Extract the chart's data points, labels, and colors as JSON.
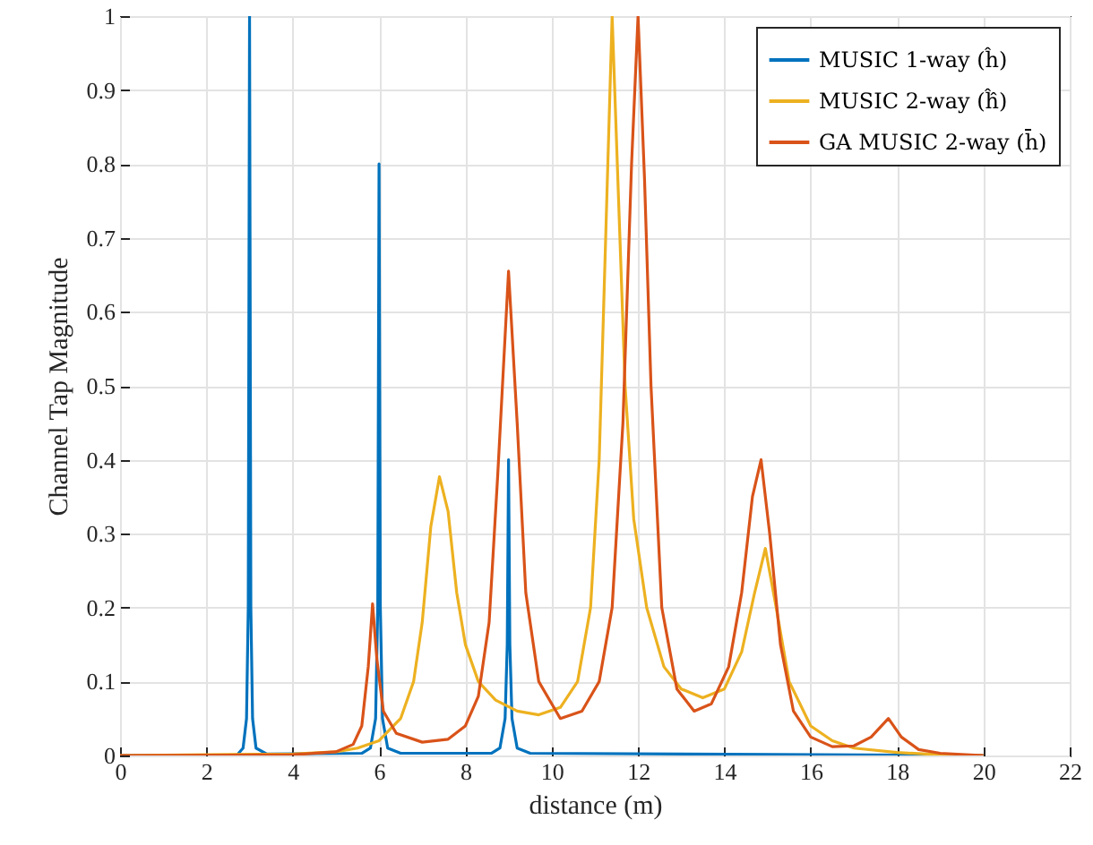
{
  "chart_data": {
    "type": "line",
    "xlabel": "distance (m)",
    "ylabel": "Channel Tap Magnitude",
    "xlim": [
      0,
      22
    ],
    "xticks": [
      0,
      2,
      4,
      6,
      8,
      10,
      12,
      14,
      16,
      18,
      20,
      22
    ],
    "ylim": [
      0,
      1
    ],
    "yticks": [
      0,
      0.1,
      0.2,
      0.3,
      0.4,
      0.5,
      0.6,
      0.7,
      0.8,
      0.9,
      1
    ],
    "grid": true,
    "legend": "top right",
    "marker": "none",
    "line_style": "solid",
    "series": [
      {
        "name": "MUSIC 1-way (ĥ)",
        "color": "#0072bd",
        "x": [
          0,
          2.7,
          2.85,
          2.93,
          2.97,
          3.0,
          3.03,
          3.07,
          3.15,
          3.4,
          5.6,
          5.8,
          5.92,
          5.97,
          6.0,
          6.03,
          6.08,
          6.2,
          6.5,
          8.6,
          8.8,
          8.92,
          8.97,
          9.0,
          9.03,
          9.08,
          9.2,
          9.5,
          20
        ],
        "values": [
          0,
          0,
          0.01,
          0.05,
          0.2,
          1.0,
          0.2,
          0.05,
          0.01,
          0.002,
          0.003,
          0.01,
          0.05,
          0.2,
          0.8,
          0.2,
          0.05,
          0.01,
          0.003,
          0.003,
          0.01,
          0.05,
          0.15,
          0.4,
          0.15,
          0.05,
          0.01,
          0.003,
          0
        ]
      },
      {
        "name": "MUSIC 2-way (ĥ̂)",
        "color": "#edb120",
        "x": [
          0,
          4,
          5,
          5.5,
          6,
          6.5,
          6.8,
          7.0,
          7.2,
          7.4,
          7.6,
          7.8,
          8.0,
          8.3,
          8.7,
          9.2,
          9.7,
          10.2,
          10.6,
          10.9,
          11.1,
          11.25,
          11.4,
          11.55,
          11.7,
          11.9,
          12.2,
          12.6,
          13.0,
          13.5,
          14.0,
          14.4,
          14.7,
          14.95,
          15.2,
          15.5,
          16,
          16.5,
          17,
          18,
          19,
          20
        ],
        "values": [
          0,
          0.002,
          0.005,
          0.01,
          0.02,
          0.05,
          0.1,
          0.18,
          0.31,
          0.377,
          0.33,
          0.22,
          0.15,
          0.1,
          0.075,
          0.06,
          0.055,
          0.065,
          0.1,
          0.2,
          0.4,
          0.7,
          1.0,
          0.75,
          0.5,
          0.32,
          0.2,
          0.12,
          0.09,
          0.078,
          0.09,
          0.14,
          0.22,
          0.28,
          0.2,
          0.1,
          0.04,
          0.02,
          0.01,
          0.004,
          0.001,
          0
        ]
      },
      {
        "name": "GA MUSIC 2-way (h̄̄)",
        "color": "#d95319",
        "x": [
          0,
          4,
          5,
          5.4,
          5.6,
          5.75,
          5.85,
          5.95,
          6.1,
          6.4,
          7.0,
          7.6,
          8.0,
          8.3,
          8.55,
          8.75,
          9.0,
          9.2,
          9.4,
          9.7,
          10.2,
          10.7,
          11.1,
          11.4,
          11.65,
          11.85,
          12.0,
          12.15,
          12.3,
          12.55,
          12.9,
          13.3,
          13.7,
          14.1,
          14.4,
          14.65,
          14.85,
          15.05,
          15.3,
          15.6,
          16.0,
          16.5,
          17.0,
          17.4,
          17.8,
          18.1,
          18.5,
          19,
          20
        ],
        "values": [
          0,
          0.001,
          0.005,
          0.015,
          0.04,
          0.12,
          0.205,
          0.13,
          0.06,
          0.03,
          0.018,
          0.022,
          0.04,
          0.08,
          0.18,
          0.38,
          0.655,
          0.45,
          0.22,
          0.1,
          0.05,
          0.06,
          0.1,
          0.2,
          0.45,
          0.8,
          1.0,
          0.78,
          0.5,
          0.2,
          0.09,
          0.06,
          0.07,
          0.12,
          0.22,
          0.35,
          0.4,
          0.3,
          0.15,
          0.06,
          0.025,
          0.012,
          0.013,
          0.025,
          0.05,
          0.025,
          0.008,
          0.003,
          0
        ]
      }
    ]
  }
}
